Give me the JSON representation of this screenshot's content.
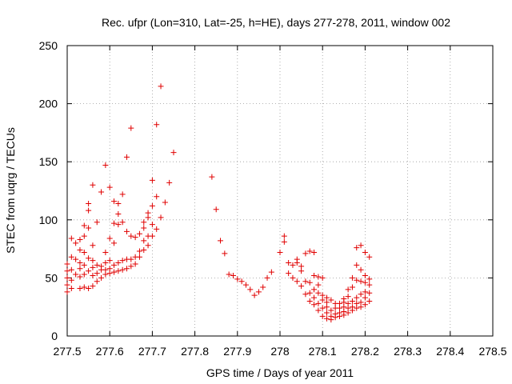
{
  "chart_data": {
    "type": "scatter",
    "title": "Rec. ufpr (Lon=310, Lat=-25, h=HE), days 277-278, 2011, window 002",
    "xlabel": "GPS time / Days of year 2011",
    "ylabel": "STEC from uqrg / TECUs",
    "xlim": [
      277.5,
      278.5
    ],
    "ylim": [
      0,
      250
    ],
    "xticks": [
      "277.5",
      "277.6",
      "277.7",
      "277.8",
      "277.9",
      "278",
      "278.1",
      "278.2",
      "278.3",
      "278.4",
      "278.5"
    ],
    "yticks": [
      "0",
      "50",
      "100",
      "150",
      "200",
      "250"
    ],
    "grid": true,
    "marker": "plus",
    "color": "#e00000",
    "series": [
      {
        "points": [
          [
            277.5,
            38
          ],
          [
            277.5,
            44
          ],
          [
            277.5,
            50
          ],
          [
            277.5,
            56
          ],
          [
            277.5,
            62
          ],
          [
            277.51,
            41
          ],
          [
            277.51,
            48
          ],
          [
            277.51,
            57
          ],
          [
            277.51,
            68
          ],
          [
            277.51,
            84
          ],
          [
            277.52,
            53
          ],
          [
            277.52,
            66
          ],
          [
            277.52,
            80
          ],
          [
            277.53,
            41
          ],
          [
            277.53,
            51
          ],
          [
            277.53,
            58
          ],
          [
            277.53,
            63
          ],
          [
            277.53,
            74
          ],
          [
            277.53,
            83
          ],
          [
            277.54,
            42
          ],
          [
            277.54,
            53
          ],
          [
            277.54,
            61
          ],
          [
            277.54,
            72
          ],
          [
            277.54,
            86
          ],
          [
            277.54,
            95
          ],
          [
            277.55,
            41
          ],
          [
            277.55,
            56
          ],
          [
            277.55,
            67
          ],
          [
            277.55,
            93
          ],
          [
            277.55,
            108
          ],
          [
            277.55,
            114
          ],
          [
            277.56,
            43
          ],
          [
            277.56,
            52
          ],
          [
            277.56,
            59
          ],
          [
            277.56,
            65
          ],
          [
            277.56,
            78
          ],
          [
            277.56,
            130
          ],
          [
            277.57,
            47
          ],
          [
            277.57,
            54
          ],
          [
            277.57,
            61
          ],
          [
            277.57,
            98
          ],
          [
            277.58,
            50
          ],
          [
            277.58,
            57
          ],
          [
            277.58,
            60
          ],
          [
            277.58,
            124
          ],
          [
            277.59,
            53
          ],
          [
            277.59,
            57
          ],
          [
            277.59,
            63
          ],
          [
            277.59,
            72
          ],
          [
            277.59,
            147
          ],
          [
            277.6,
            54
          ],
          [
            277.6,
            58
          ],
          [
            277.6,
            65
          ],
          [
            277.6,
            84
          ],
          [
            277.6,
            128
          ],
          [
            277.61,
            55
          ],
          [
            277.61,
            61
          ],
          [
            277.61,
            80
          ],
          [
            277.61,
            97
          ],
          [
            277.61,
            116
          ],
          [
            277.62,
            56
          ],
          [
            277.62,
            63
          ],
          [
            277.62,
            96
          ],
          [
            277.62,
            105
          ],
          [
            277.62,
            114
          ],
          [
            277.63,
            57
          ],
          [
            277.63,
            65
          ],
          [
            277.63,
            98
          ],
          [
            277.63,
            122
          ],
          [
            277.64,
            58
          ],
          [
            277.64,
            66
          ],
          [
            277.64,
            90
          ],
          [
            277.64,
            154
          ],
          [
            277.65,
            60
          ],
          [
            277.65,
            66
          ],
          [
            277.65,
            86
          ],
          [
            277.65,
            179
          ],
          [
            277.66,
            62
          ],
          [
            277.66,
            68
          ],
          [
            277.66,
            85
          ],
          [
            277.67,
            68
          ],
          [
            277.67,
            73
          ],
          [
            277.67,
            88
          ],
          [
            277.68,
            74
          ],
          [
            277.68,
            82
          ],
          [
            277.68,
            93
          ],
          [
            277.68,
            98
          ],
          [
            277.69,
            78
          ],
          [
            277.69,
            86
          ],
          [
            277.69,
            102
          ],
          [
            277.69,
            106
          ],
          [
            277.7,
            86
          ],
          [
            277.7,
            96
          ],
          [
            277.7,
            112
          ],
          [
            277.7,
            134
          ],
          [
            277.71,
            92
          ],
          [
            277.71,
            120
          ],
          [
            277.71,
            182
          ],
          [
            277.72,
            102
          ],
          [
            277.72,
            215
          ],
          [
            277.73,
            115
          ],
          [
            277.74,
            132
          ],
          [
            277.75,
            158
          ],
          [
            277.84,
            137
          ],
          [
            277.85,
            109
          ],
          [
            277.86,
            82
          ],
          [
            277.87,
            71
          ],
          [
            277.88,
            53
          ],
          [
            277.89,
            52
          ],
          [
            277.9,
            49
          ],
          [
            277.91,
            47
          ],
          [
            277.92,
            44
          ],
          [
            277.93,
            40
          ],
          [
            277.94,
            35
          ],
          [
            277.95,
            38
          ],
          [
            277.96,
            42
          ],
          [
            277.97,
            50
          ],
          [
            277.98,
            55
          ],
          [
            278.0,
            72
          ],
          [
            278.01,
            81
          ],
          [
            278.01,
            86
          ],
          [
            278.02,
            54
          ],
          [
            278.02,
            63
          ],
          [
            278.03,
            50
          ],
          [
            278.03,
            61
          ],
          [
            278.04,
            47
          ],
          [
            278.04,
            63
          ],
          [
            278.04,
            66
          ],
          [
            278.05,
            43
          ],
          [
            278.05,
            56
          ],
          [
            278.05,
            60
          ],
          [
            278.06,
            36
          ],
          [
            278.06,
            47
          ],
          [
            278.06,
            71
          ],
          [
            278.07,
            30
          ],
          [
            278.07,
            37
          ],
          [
            278.07,
            46
          ],
          [
            278.07,
            73
          ],
          [
            278.08,
            27
          ],
          [
            278.08,
            33
          ],
          [
            278.08,
            40
          ],
          [
            278.08,
            52
          ],
          [
            278.08,
            72
          ],
          [
            278.09,
            22
          ],
          [
            278.09,
            28
          ],
          [
            278.09,
            37
          ],
          [
            278.09,
            44
          ],
          [
            278.09,
            51
          ],
          [
            278.1,
            17
          ],
          [
            278.1,
            24
          ],
          [
            278.1,
            31
          ],
          [
            278.1,
            35
          ],
          [
            278.1,
            50
          ],
          [
            278.11,
            15
          ],
          [
            278.11,
            20
          ],
          [
            278.11,
            25
          ],
          [
            278.11,
            29
          ],
          [
            278.11,
            33
          ],
          [
            278.12,
            14
          ],
          [
            278.12,
            17
          ],
          [
            278.12,
            22
          ],
          [
            278.12,
            31
          ],
          [
            278.13,
            16
          ],
          [
            278.13,
            19
          ],
          [
            278.13,
            24
          ],
          [
            278.13,
            28
          ],
          [
            278.14,
            17
          ],
          [
            278.14,
            20
          ],
          [
            278.14,
            24
          ],
          [
            278.14,
            28
          ],
          [
            278.15,
            18
          ],
          [
            278.15,
            21
          ],
          [
            278.15,
            25
          ],
          [
            278.15,
            29
          ],
          [
            278.15,
            32
          ],
          [
            278.16,
            20
          ],
          [
            278.16,
            24
          ],
          [
            278.16,
            28
          ],
          [
            278.16,
            34
          ],
          [
            278.16,
            40
          ],
          [
            278.17,
            22
          ],
          [
            278.17,
            25
          ],
          [
            278.17,
            30
          ],
          [
            278.17,
            42
          ],
          [
            278.17,
            50
          ],
          [
            278.18,
            24
          ],
          [
            278.18,
            28
          ],
          [
            278.18,
            33
          ],
          [
            278.18,
            48
          ],
          [
            278.18,
            61
          ],
          [
            278.18,
            76
          ],
          [
            278.19,
            25
          ],
          [
            278.19,
            29
          ],
          [
            278.19,
            36
          ],
          [
            278.19,
            47
          ],
          [
            278.19,
            57
          ],
          [
            278.19,
            78
          ],
          [
            278.2,
            27
          ],
          [
            278.2,
            33
          ],
          [
            278.2,
            38
          ],
          [
            278.2,
            46
          ],
          [
            278.2,
            52
          ],
          [
            278.2,
            72
          ],
          [
            278.21,
            30
          ],
          [
            278.21,
            37
          ],
          [
            278.21,
            44
          ],
          [
            278.21,
            49
          ],
          [
            278.21,
            68
          ]
        ]
      }
    ]
  }
}
